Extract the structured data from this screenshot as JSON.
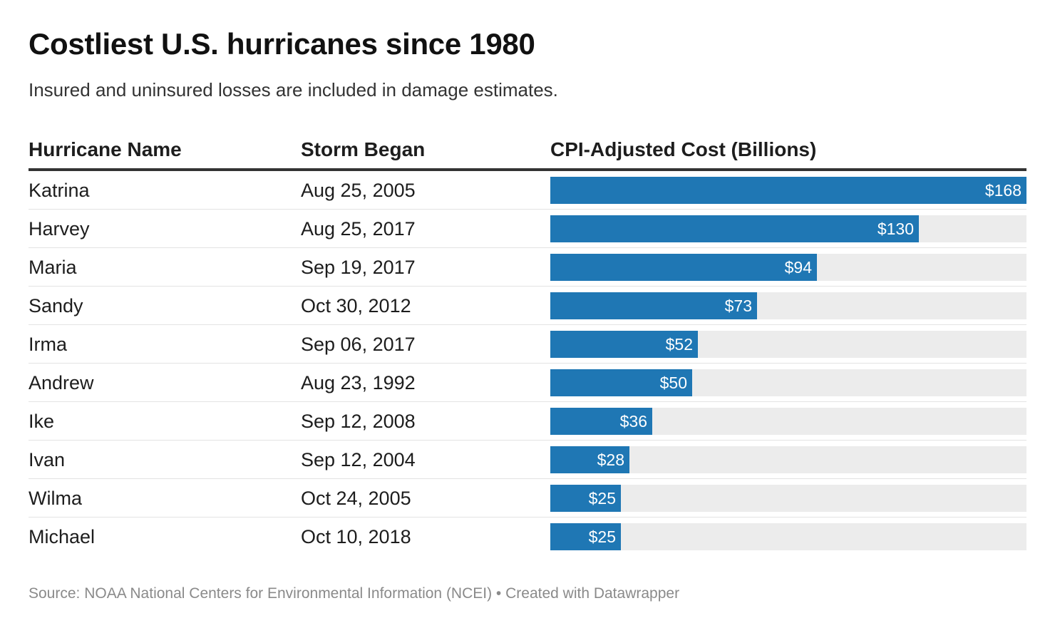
{
  "title": "Costliest U.S. hurricanes since 1980",
  "subtitle": "Insured and uninsured losses are included in damage estimates.",
  "columns": {
    "name": "Hurricane Name",
    "date": "Storm Began",
    "cost": "CPI-Adjusted Cost (Billions)"
  },
  "colors": {
    "bar": "#1f77b4",
    "track": "#ececec"
  },
  "chart_data": {
    "type": "table",
    "max_value": 168,
    "rows": [
      {
        "name": "Katrina",
        "date": "Aug 25, 2005",
        "value": 168,
        "label": "$168"
      },
      {
        "name": "Harvey",
        "date": "Aug 25, 2017",
        "value": 130,
        "label": "$130"
      },
      {
        "name": "Maria",
        "date": "Sep 19, 2017",
        "value": 94,
        "label": "$94"
      },
      {
        "name": "Sandy",
        "date": "Oct 30, 2012",
        "value": 73,
        "label": "$73"
      },
      {
        "name": "Irma",
        "date": "Sep 06, 2017",
        "value": 52,
        "label": "$52"
      },
      {
        "name": "Andrew",
        "date": "Aug 23, 1992",
        "value": 50,
        "label": "$50"
      },
      {
        "name": "Ike",
        "date": "Sep 12, 2008",
        "value": 36,
        "label": "$36"
      },
      {
        "name": "Ivan",
        "date": "Sep 12, 2004",
        "value": 28,
        "label": "$28"
      },
      {
        "name": "Wilma",
        "date": "Oct 24, 2005",
        "value": 25,
        "label": "$25"
      },
      {
        "name": "Michael",
        "date": "Oct 10, 2018",
        "value": 25,
        "label": "$25"
      }
    ]
  },
  "footer": "Source: NOAA National Centers for Environmental Information (NCEI) • Created with Datawrapper"
}
